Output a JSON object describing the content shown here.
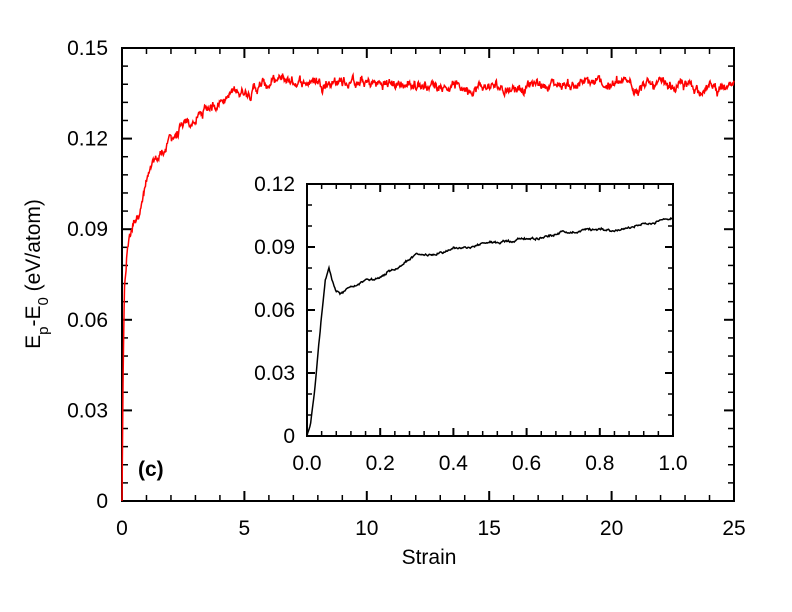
{
  "chart_data": [
    {
      "type": "line",
      "panel_label": "(c)",
      "xlabel": "Strain",
      "ylabel_base": "E",
      "ylabel_sub1": "p",
      "ylabel_mid": "-E",
      "ylabel_sub2": "0",
      "ylabel_unit": " (eV/atom)",
      "xlim": [
        0,
        25
      ],
      "ylim": [
        0,
        0.15
      ],
      "xticks": [
        0,
        5,
        10,
        15,
        20,
        25
      ],
      "xtick_labels": [
        "0",
        "5",
        "10",
        "15",
        "20",
        "25"
      ],
      "yticks": [
        0,
        0.03,
        0.06,
        0.09,
        0.12,
        0.15
      ],
      "ytick_labels": [
        "0",
        "0.03",
        "0.06",
        "0.09",
        "0.12",
        "0.15"
      ],
      "color": "#ff0000",
      "series": [
        {
          "name": "main",
          "x": [
            0,
            0.05,
            0.1,
            0.2,
            0.3,
            0.5,
            0.8,
            1.0,
            1.3,
            1.6,
            2.0,
            2.5,
            3.0,
            3.5,
            4.0,
            4.5,
            5.0,
            5.5,
            6.0,
            6.5,
            7.0,
            8.0,
            9.0,
            10.0,
            11.0,
            12.0,
            13.0,
            14.0,
            15.0,
            16.0,
            17.0,
            18.0,
            19.0,
            20.0,
            21.0,
            22.0,
            23.0,
            24.0,
            25.0
          ],
          "y": [
            0,
            0.045,
            0.068,
            0.081,
            0.087,
            0.093,
            0.099,
            0.105,
            0.111,
            0.115,
            0.12,
            0.123,
            0.126,
            0.13,
            0.133,
            0.135,
            0.136,
            0.137,
            0.138,
            0.139,
            0.139,
            0.139,
            0.139,
            0.138,
            0.138,
            0.138,
            0.138,
            0.137,
            0.137,
            0.137,
            0.138,
            0.138,
            0.138,
            0.138,
            0.138,
            0.137,
            0.137,
            0.137,
            0.136
          ]
        }
      ]
    },
    {
      "type": "line",
      "role": "inset",
      "xlim": [
        0,
        1
      ],
      "ylim": [
        0,
        0.12
      ],
      "xticks": [
        0,
        0.2,
        0.4,
        0.6,
        0.8,
        1.0
      ],
      "xtick_labels": [
        "0.0",
        "0.2",
        "0.4",
        "0.6",
        "0.8",
        "1.0"
      ],
      "yticks": [
        0,
        0.03,
        0.06,
        0.09,
        0.12
      ],
      "ytick_labels": [
        "0",
        "0.03",
        "0.06",
        "0.09",
        "0.12"
      ],
      "color": "#000000",
      "series": [
        {
          "name": "inset",
          "x": [
            0,
            0.01,
            0.02,
            0.03,
            0.04,
            0.05,
            0.06,
            0.07,
            0.08,
            0.09,
            0.1,
            0.12,
            0.14,
            0.16,
            0.18,
            0.2,
            0.22,
            0.25,
            0.28,
            0.3,
            0.35,
            0.4,
            0.45,
            0.5,
            0.55,
            0.6,
            0.65,
            0.7,
            0.75,
            0.8,
            0.85,
            0.9,
            0.95,
            1.0
          ],
          "y": [
            0,
            0.006,
            0.02,
            0.04,
            0.058,
            0.075,
            0.081,
            0.074,
            0.069,
            0.068,
            0.069,
            0.071,
            0.072,
            0.075,
            0.074,
            0.075,
            0.078,
            0.08,
            0.084,
            0.086,
            0.087,
            0.089,
            0.09,
            0.092,
            0.093,
            0.094,
            0.095,
            0.097,
            0.098,
            0.099,
            0.098,
            0.1,
            0.101,
            0.104
          ]
        }
      ]
    }
  ]
}
